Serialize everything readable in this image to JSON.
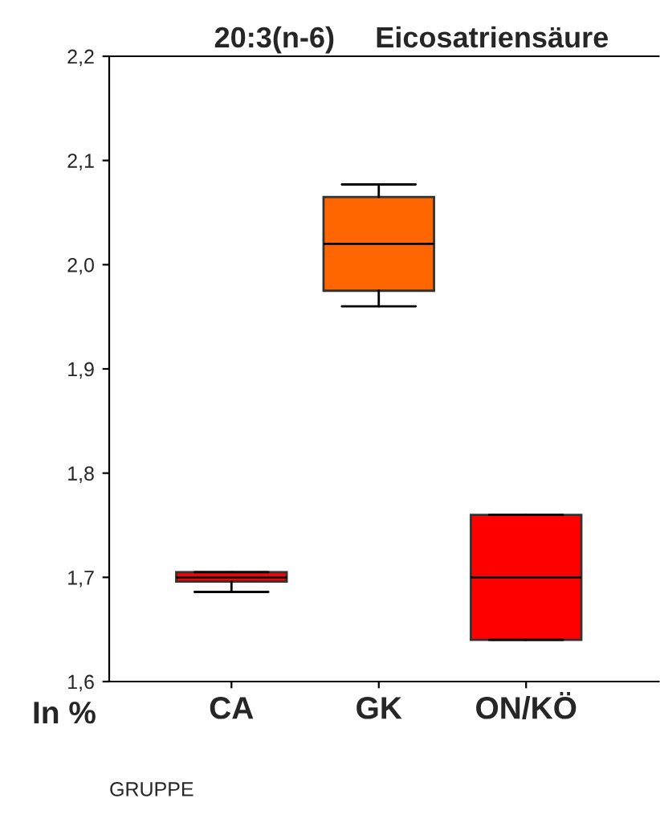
{
  "chart_data": {
    "type": "box",
    "title": "20:3(n-6)     Eicosatriensäure",
    "xlabel": "GRUPPE",
    "ylabel": "In %",
    "categories": [
      "CA",
      "GK",
      "ON/KÖ"
    ],
    "colors": [
      "#ff0000",
      "#ff6600",
      "#ff0000"
    ],
    "boxes": [
      {
        "low": 1.686,
        "q1": 1.696,
        "median": 1.7,
        "q3": 1.705,
        "high": 1.705
      },
      {
        "low": 1.96,
        "q1": 1.975,
        "median": 2.02,
        "q3": 2.065,
        "high": 2.077
      },
      {
        "low": 1.64,
        "q1": 1.64,
        "median": 1.7,
        "q3": 1.76,
        "high": 1.76
      }
    ],
    "ylim": [
      1.6,
      2.2
    ],
    "yticks": [
      {
        "value": 1.6,
        "label": "1,6"
      },
      {
        "value": 1.7,
        "label": "1,7"
      },
      {
        "value": 1.8,
        "label": "1,8"
      },
      {
        "value": 1.9,
        "label": "1,9"
      },
      {
        "value": 2.0,
        "label": "2,0"
      },
      {
        "value": 2.1,
        "label": "2,1"
      },
      {
        "value": 2.2,
        "label": "2,2"
      }
    ],
    "grid": false,
    "legend": false
  }
}
